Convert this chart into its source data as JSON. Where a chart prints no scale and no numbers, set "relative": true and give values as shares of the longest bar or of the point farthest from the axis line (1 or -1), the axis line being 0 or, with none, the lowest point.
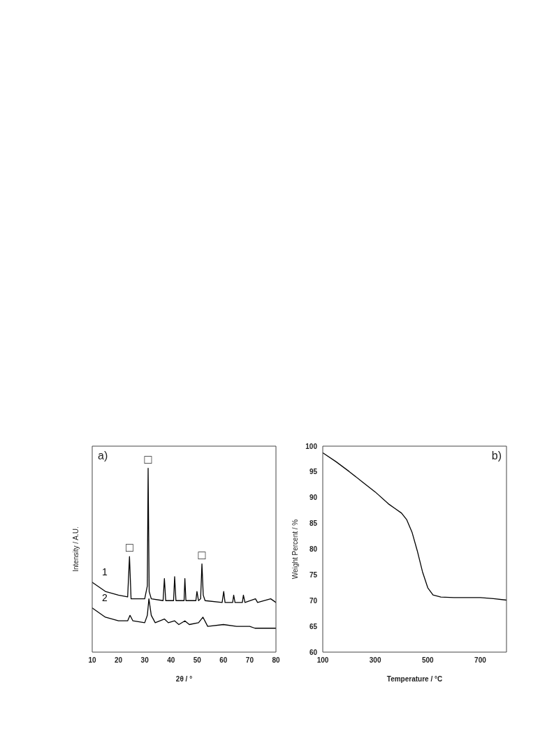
{
  "chart_data": [
    {
      "type": "line",
      "xlabel": "2θ / °",
      "ylabel": "Intensity / A.U.",
      "xlim": [
        10,
        80
      ],
      "xticks": [
        10,
        20,
        30,
        40,
        50,
        60,
        70,
        80
      ],
      "relative": true,
      "marker": "none",
      "annotations": [
        "a)",
        {
          "text": "□",
          "x": 24.2,
          "y": 0.52
        },
        {
          "text": "□",
          "x": 31.3,
          "y": 1
        },
        {
          "text": "□",
          "x": 51.8,
          "y": 0.48
        }
      ],
      "series": [
        {
          "name": "1",
          "color": "#000000",
          "x": [
            10,
            15,
            20,
            23.5,
            24.2,
            24.8,
            30,
            31,
            31.3,
            31.7,
            32.5,
            37,
            37.5,
            38,
            41,
            41.4,
            41.9,
            45,
            45.3,
            45.7,
            49.5,
            49.9,
            50.5,
            51.3,
            51.8,
            52.3,
            53,
            59.5,
            60.1,
            60.6,
            63.5,
            63.9,
            64.4,
            67.2,
            67.6,
            68.2,
            72.2,
            73,
            78,
            80
          ],
          "values": [
            0.38,
            0.33,
            0.31,
            0.3,
            0.52,
            0.29,
            0.29,
            0.36,
            1,
            0.33,
            0.29,
            0.28,
            0.4,
            0.28,
            0.28,
            0.41,
            0.28,
            0.28,
            0.4,
            0.28,
            0.28,
            0.33,
            0.28,
            0.29,
            0.48,
            0.31,
            0.28,
            0.27,
            0.33,
            0.27,
            0.27,
            0.31,
            0.27,
            0.27,
            0.31,
            0.27,
            0.29,
            0.27,
            0.29,
            0.27
          ]
        },
        {
          "name": "2",
          "color": "#000000",
          "x": [
            10,
            15,
            20,
            23.5,
            24.4,
            25.5,
            30,
            31,
            31.6,
            32.5,
            34,
            37.5,
            39,
            41.4,
            43,
            45.3,
            47,
            50.5,
            52.2,
            54,
            60,
            65,
            70,
            72,
            80
          ],
          "values": [
            0.24,
            0.19,
            0.17,
            0.17,
            0.2,
            0.17,
            0.16,
            0.2,
            0.29,
            0.2,
            0.16,
            0.18,
            0.16,
            0.17,
            0.15,
            0.17,
            0.15,
            0.16,
            0.19,
            0.14,
            0.15,
            0.14,
            0.14,
            0.13,
            0.13
          ]
        }
      ]
    },
    {
      "type": "line",
      "xlabel": "Temperature  / °C",
      "ylabel": "Weight Percent / %",
      "xlim": [
        100,
        800
      ],
      "xticks": [
        100,
        300,
        500,
        700
      ],
      "ylim": [
        60,
        100
      ],
      "yticks": [
        60,
        65,
        70,
        75,
        80,
        85,
        90,
        95,
        100
      ],
      "marker": "none",
      "annotations": [
        "b)"
      ],
      "series": [
        {
          "color": "#000000",
          "x": [
            100,
            150,
            200,
            250,
            300,
            350,
            375,
            400,
            420,
            440,
            460,
            480,
            500,
            520,
            550,
            600,
            700,
            750,
            800
          ],
          "values": [
            98.7,
            97,
            95.1,
            93.1,
            91.1,
            88.8,
            87.9,
            87,
            85.7,
            83.3,
            79.7,
            75.6,
            72.5,
            71.1,
            70.7,
            70.6,
            70.6,
            70.4,
            70.1
          ]
        }
      ]
    }
  ]
}
